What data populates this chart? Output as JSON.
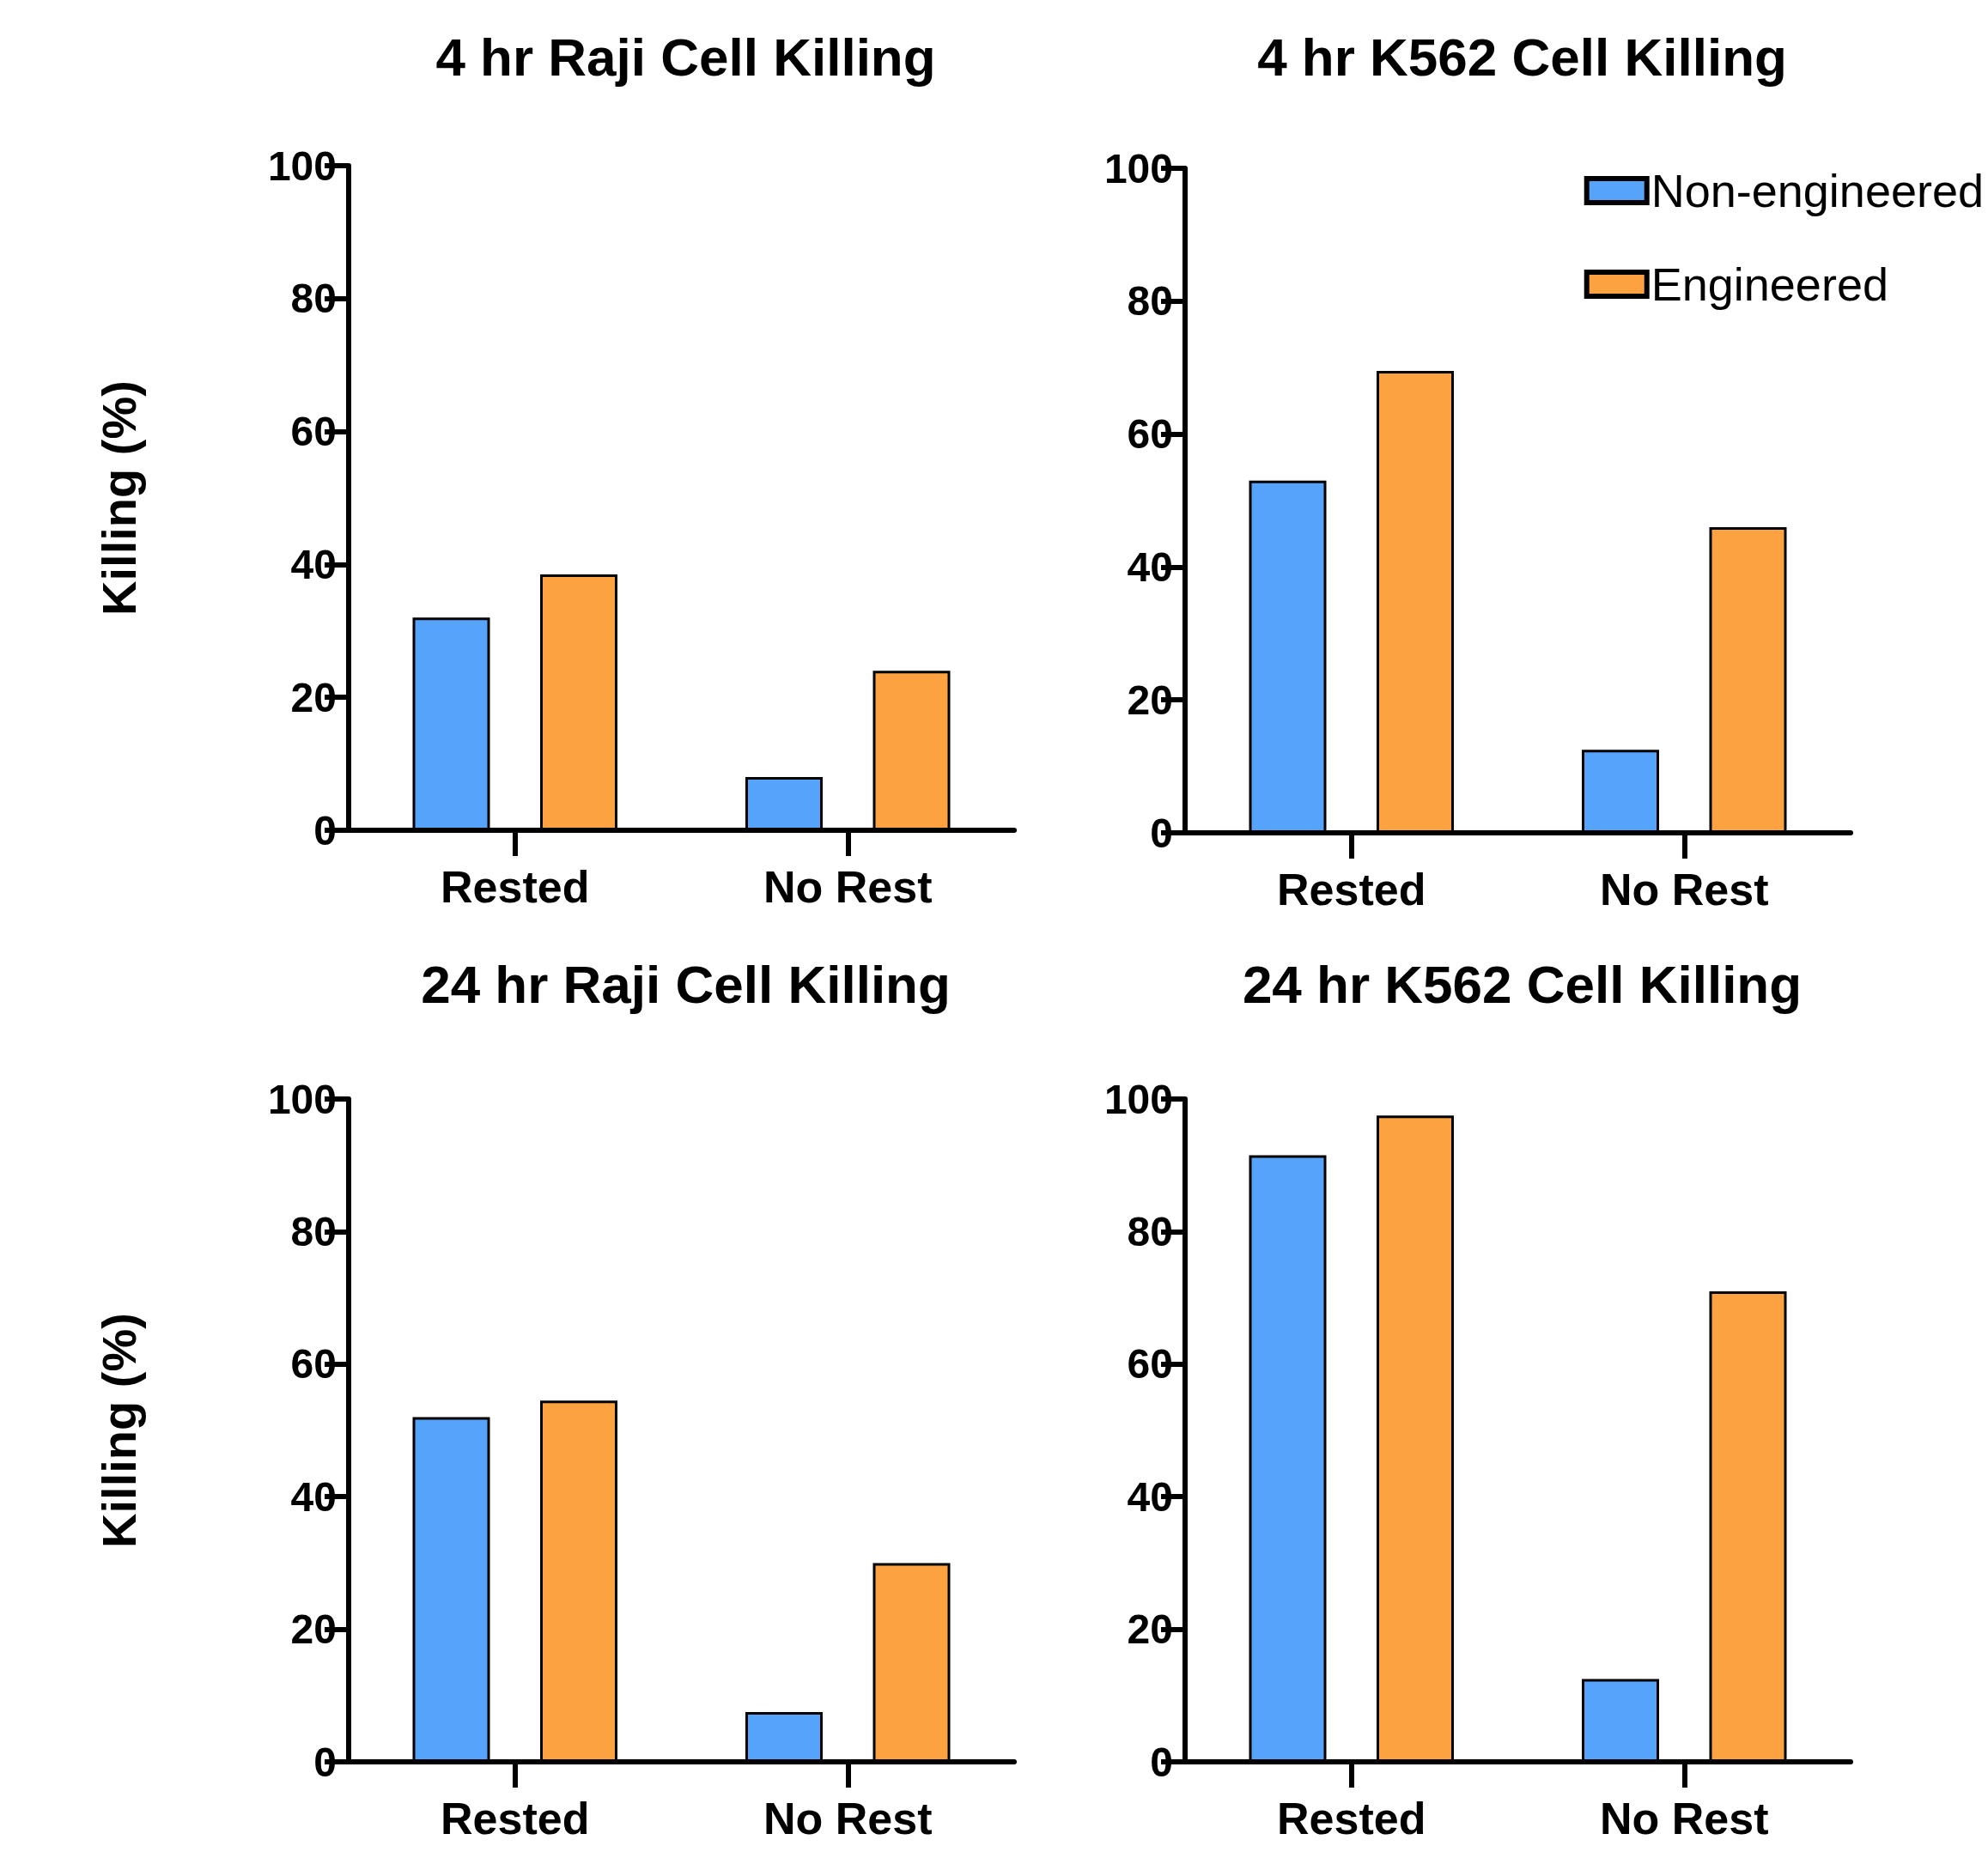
{
  "chart_data": [
    {
      "type": "bar",
      "title": "4 hr Raji Cell Killing",
      "ylabel": "Killing (%)",
      "categories": [
        "Rested",
        "No Rest"
      ],
      "series": [
        {
          "color": "#55a3fb",
          "values": [
            32,
            8
          ]
        },
        {
          "color": "#fca241",
          "values": [
            38.5,
            24
          ]
        }
      ],
      "ylim": [
        0,
        100
      ],
      "yticks": [
        0,
        20,
        40,
        60,
        80,
        100
      ],
      "grid": false,
      "legend": false
    },
    {
      "type": "bar",
      "title": "4 hr K562 Cell Killing",
      "categories": [
        "Rested",
        "No Rest"
      ],
      "series": [
        {
          "name": "Non-engineered",
          "color": "#55a3fb",
          "values": [
            53,
            12.5
          ]
        },
        {
          "name": "Engineered",
          "color": "#fca241",
          "values": [
            69.5,
            46
          ]
        }
      ],
      "ylim": [
        0,
        100
      ],
      "yticks": [
        0,
        20,
        40,
        60,
        80,
        100
      ],
      "grid": false,
      "legend": "top right"
    },
    {
      "type": "bar",
      "title": "24 hr Raji Cell Killing",
      "ylabel": "Killing (%)",
      "categories": [
        "Rested",
        "No Rest"
      ],
      "series": [
        {
          "color": "#55a3fb",
          "values": [
            52,
            7.5
          ]
        },
        {
          "color": "#fca241",
          "values": [
            54.5,
            30
          ]
        }
      ],
      "ylim": [
        0,
        100
      ],
      "yticks": [
        0,
        20,
        40,
        60,
        80,
        100
      ],
      "grid": false,
      "legend": false
    },
    {
      "type": "bar",
      "title": "24 hr K562 Cell Killing",
      "categories": [
        "Rested",
        "No Rest"
      ],
      "series": [
        {
          "color": "#55a3fb",
          "values": [
            91.5,
            12.5
          ]
        },
        {
          "color": "#fca241",
          "values": [
            97.5,
            71
          ]
        }
      ],
      "ylim": [
        0,
        100
      ],
      "yticks": [
        0,
        20,
        40,
        60,
        80,
        100
      ],
      "grid": false,
      "legend": false
    }
  ]
}
